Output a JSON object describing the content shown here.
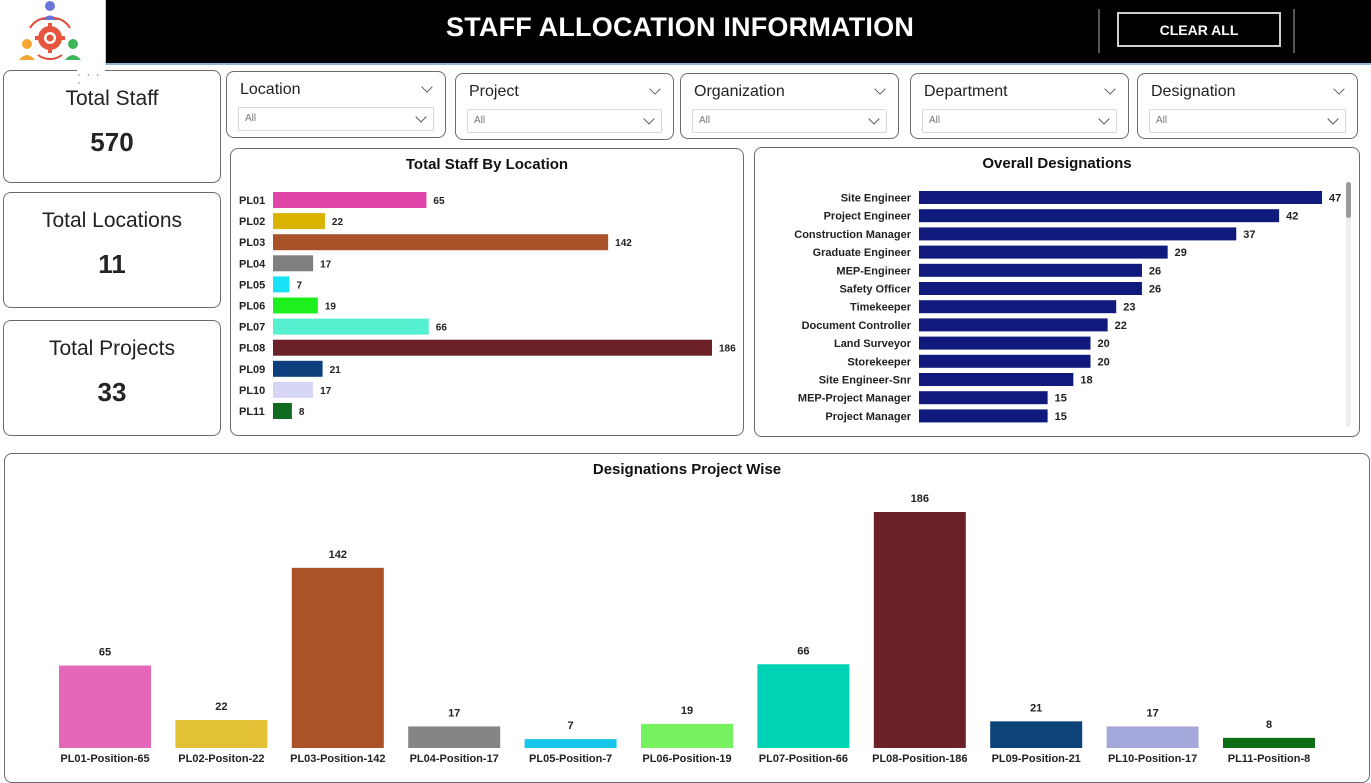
{
  "header": {
    "title": "STAFF ALLOCATION INFORMATION",
    "clear_label": "CLEAR ALL"
  },
  "kpis": {
    "total_staff": {
      "label": "Total Staff",
      "value": "570"
    },
    "total_locations": {
      "label": "Total Locations",
      "value": "11"
    },
    "total_projects": {
      "label": "Total Projects",
      "value": "33"
    }
  },
  "slicers": [
    {
      "label": "Location",
      "value": "All"
    },
    {
      "label": "Project",
      "value": "All"
    },
    {
      "label": "Organization",
      "value": "All"
    },
    {
      "label": "Department",
      "value": "All"
    },
    {
      "label": "Designation",
      "value": "All"
    }
  ],
  "chart_data": [
    {
      "type": "bar",
      "orientation": "horizontal",
      "title": "Total Staff By Location",
      "categories": [
        "PL01",
        "PL02",
        "PL03",
        "PL04",
        "PL05",
        "PL06",
        "PL07",
        "PL08",
        "PL09",
        "PL10",
        "PL11"
      ],
      "values": [
        65,
        22,
        142,
        17,
        7,
        19,
        66,
        186,
        21,
        17,
        8
      ],
      "colors": [
        "#e044a7",
        "#d9b300",
        "#a95128",
        "#7f7f7f",
        "#18e2f6",
        "#1ef01e",
        "#55f0cf",
        "#6b2127",
        "#0d3f7d",
        "#d8d6f5",
        "#0f6b20"
      ],
      "xlim": [
        0,
        186
      ]
    },
    {
      "type": "bar",
      "orientation": "horizontal",
      "title": "Overall Designations",
      "categories": [
        "Site Engineer",
        "Project Engineer",
        "Construction Manager",
        "Graduate Engineer",
        "MEP-Engineer",
        "Safety Officer",
        "Timekeeper",
        "Document Controller",
        "Land Surveyor",
        "Storekeeper",
        "Site Engineer-Snr",
        "MEP-Project Manager",
        "Project Manager"
      ],
      "values": [
        47,
        42,
        37,
        29,
        26,
        26,
        23,
        22,
        20,
        20,
        18,
        15,
        15
      ],
      "color": "#10197c",
      "xlim": [
        0,
        47
      ]
    },
    {
      "type": "bar",
      "orientation": "vertical",
      "title": "Designations Project Wise",
      "categories": [
        "PL01-Position-65",
        "PL02-Positon-22",
        "PL03-Position-142",
        "PL04-Position-17",
        "PL05-Position-7",
        "PL06-Position-19",
        "PL07-Position-66",
        "PL08-Position-186",
        "PL09-Position-21",
        "PL10-Position-17",
        "PL11-Position-8"
      ],
      "values": [
        65,
        22,
        142,
        17,
        7,
        19,
        66,
        186,
        21,
        17,
        8
      ],
      "colors": [
        "#e467ba",
        "#e2c134",
        "#ab5229",
        "#858585",
        "#16c7e9",
        "#76f15f",
        "#00d2b5",
        "#6b2127",
        "#0d4378",
        "#a5a8da",
        "#0b6e15"
      ],
      "ylim": [
        0,
        186
      ]
    }
  ]
}
